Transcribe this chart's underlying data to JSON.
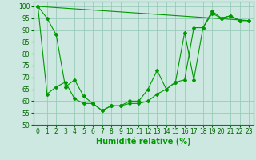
{
  "xlabel": "Humidité relative (%)",
  "background_color": "#cce8e0",
  "grid_color": "#99ccbb",
  "line_color": "#009900",
  "xlim": [
    -0.5,
    23.5
  ],
  "ylim": [
    50,
    102
  ],
  "yticks": [
    50,
    55,
    60,
    65,
    70,
    75,
    80,
    85,
    90,
    95,
    100
  ],
  "xticks": [
    0,
    1,
    2,
    3,
    4,
    5,
    6,
    7,
    8,
    9,
    10,
    11,
    12,
    13,
    14,
    15,
    16,
    17,
    18,
    19,
    20,
    21,
    22,
    23
  ],
  "series1_x": [
    0,
    1,
    2,
    3,
    4,
    5,
    6,
    7,
    8,
    9,
    10,
    11,
    12,
    13,
    14,
    15,
    16,
    17,
    18,
    19,
    20,
    21,
    22,
    23
  ],
  "series1_y": [
    100,
    95,
    88,
    66,
    69,
    62,
    59,
    56,
    58,
    58,
    60,
    60,
    65,
    73,
    65,
    68,
    89,
    69,
    91,
    97,
    95,
    96,
    94,
    94
  ],
  "series2_x": [
    0,
    1,
    2,
    3,
    4,
    5,
    6,
    7,
    8,
    9,
    10,
    11,
    12,
    13,
    14,
    15,
    16,
    17,
    18,
    19,
    20,
    21,
    22,
    23
  ],
  "series2_y": [
    100,
    63,
    66,
    68,
    61,
    59,
    59,
    56,
    58,
    58,
    59,
    59,
    60,
    63,
    65,
    68,
    69,
    91,
    91,
    98,
    95,
    96,
    94,
    94
  ],
  "series3_x": [
    0,
    23
  ],
  "series3_y": [
    100,
    94
  ],
  "xlabel_fontsize": 7,
  "tick_fontsize": 5.5
}
